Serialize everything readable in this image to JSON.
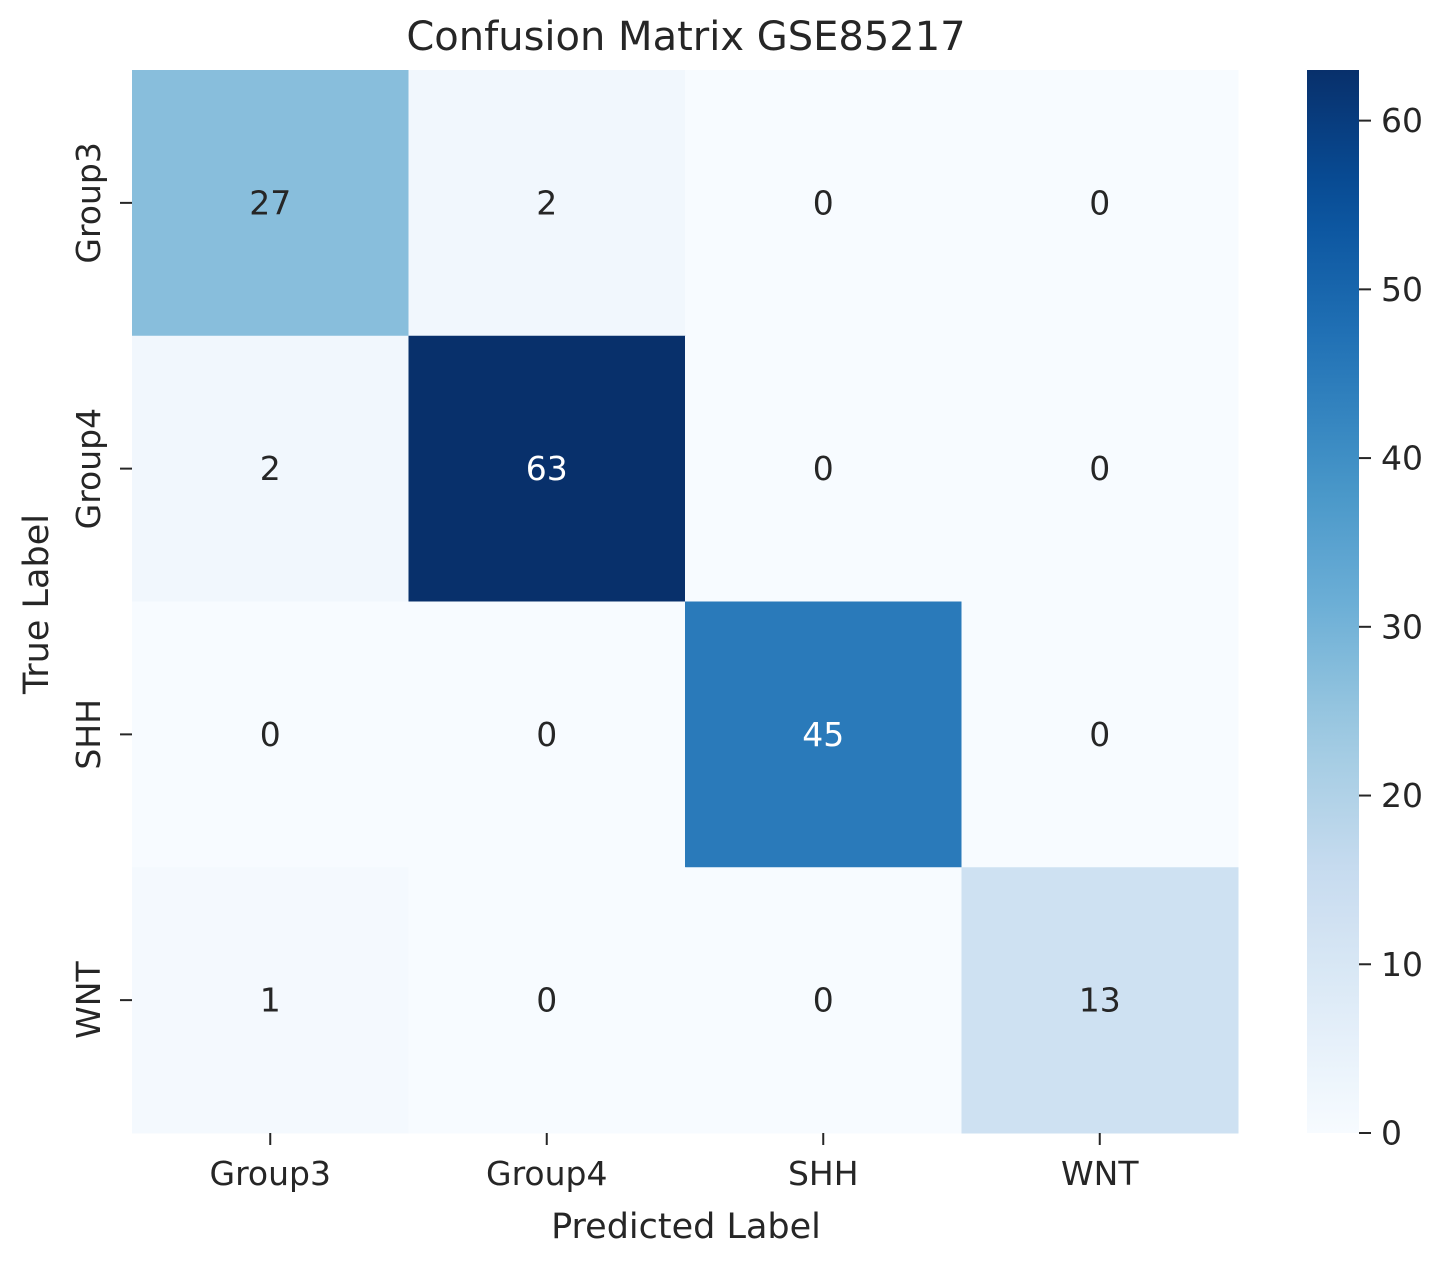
{
  "chart_data": {
    "type": "heatmap",
    "title": "Confusion Matrix GSE85217",
    "xlabel": "Predicted Label",
    "ylabel": "True Label",
    "x_categories": [
      "Group3",
      "Group4",
      "SHH",
      "WNT"
    ],
    "y_categories": [
      "Group3",
      "Group4",
      "SHH",
      "WNT"
    ],
    "matrix": [
      [
        27,
        2,
        0,
        0
      ],
      [
        2,
        63,
        0,
        0
      ],
      [
        0,
        0,
        45,
        0
      ],
      [
        1,
        0,
        0,
        13
      ]
    ],
    "colormap": "Blues",
    "colorbar": {
      "min": 0,
      "max": 63,
      "ticks": [
        0,
        10,
        20,
        30,
        40,
        50,
        60
      ]
    },
    "annotation_colors": {
      "dark_text": "#262626",
      "light_text": "#ffffff"
    }
  }
}
